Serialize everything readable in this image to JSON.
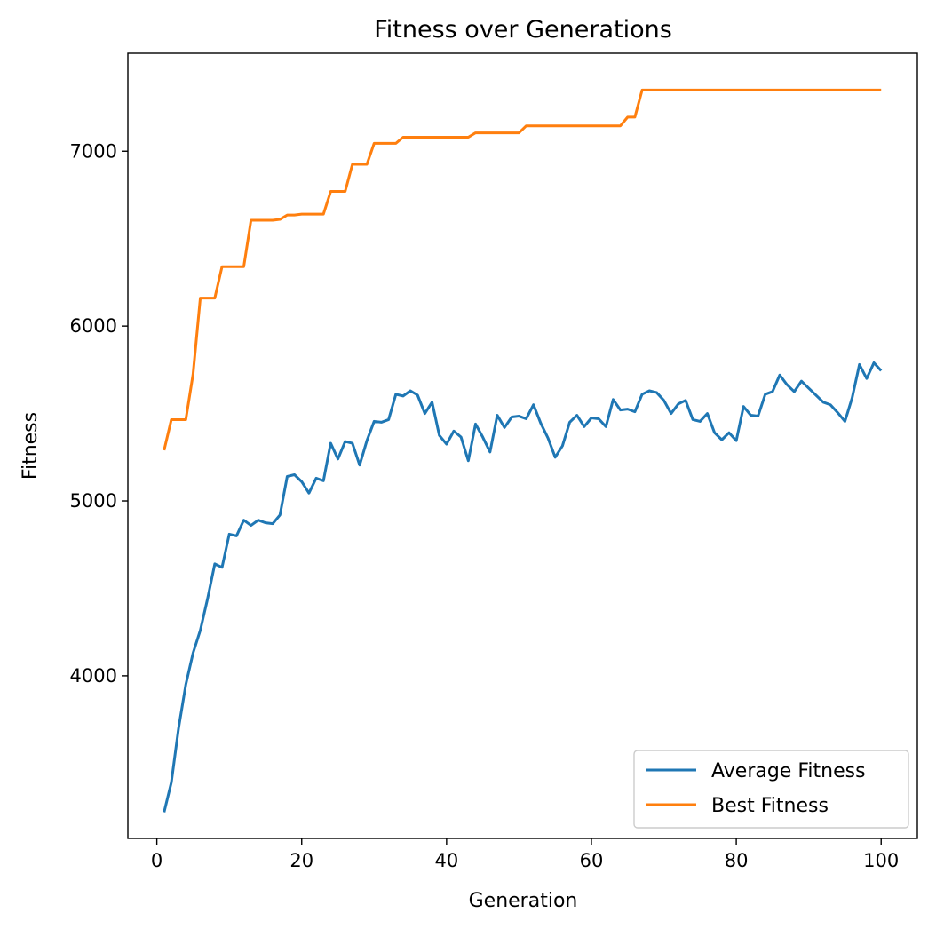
{
  "chart_data": {
    "type": "line",
    "title": "Fitness over Generations",
    "xlabel": "Generation",
    "ylabel": "Fitness",
    "xlim": [
      -4,
      105
    ],
    "ylim": [
      3070,
      7560
    ],
    "xticks": [
      0,
      20,
      40,
      60,
      80,
      100
    ],
    "yticks": [
      4000,
      5000,
      6000,
      7000
    ],
    "grid": false,
    "legend_position": "lower right",
    "x": [
      1,
      2,
      3,
      4,
      5,
      6,
      7,
      8,
      9,
      10,
      11,
      12,
      13,
      14,
      15,
      16,
      17,
      18,
      19,
      20,
      21,
      22,
      23,
      24,
      25,
      26,
      27,
      28,
      29,
      30,
      31,
      32,
      33,
      34,
      35,
      36,
      37,
      38,
      39,
      40,
      41,
      42,
      43,
      44,
      45,
      46,
      47,
      48,
      49,
      50,
      51,
      52,
      53,
      54,
      55,
      56,
      57,
      58,
      59,
      60,
      61,
      62,
      63,
      64,
      65,
      66,
      67,
      68,
      69,
      70,
      71,
      72,
      73,
      74,
      75,
      76,
      77,
      78,
      79,
      80,
      81,
      82,
      83,
      84,
      85,
      86,
      87,
      88,
      89,
      90,
      91,
      92,
      93,
      94,
      95,
      96,
      97,
      98,
      99,
      100
    ],
    "series": [
      {
        "name": "Average Fitness",
        "color": "#1f77b4",
        "values": [
          3220,
          3390,
          3700,
          3950,
          4130,
          4260,
          4440,
          4640,
          4620,
          4810,
          4800,
          4890,
          4860,
          4890,
          4875,
          4870,
          4920,
          5140,
          5150,
          5110,
          5045,
          5130,
          5115,
          5330,
          5240,
          5340,
          5330,
          5205,
          5345,
          5455,
          5450,
          5465,
          5610,
          5600,
          5630,
          5605,
          5500,
          5565,
          5375,
          5325,
          5400,
          5365,
          5230,
          5440,
          5365,
          5280,
          5490,
          5420,
          5480,
          5485,
          5470,
          5550,
          5445,
          5360,
          5250,
          5315,
          5450,
          5490,
          5425,
          5475,
          5470,
          5425,
          5580,
          5520,
          5525,
          5510,
          5610,
          5630,
          5620,
          5575,
          5500,
          5555,
          5575,
          5465,
          5455,
          5500,
          5390,
          5350,
          5390,
          5345,
          5540,
          5490,
          5485,
          5610,
          5625,
          5720,
          5665,
          5625,
          5685,
          5645,
          5605,
          5565,
          5550,
          5505,
          5455,
          5590,
          5780,
          5700,
          5790,
          5745
        ]
      },
      {
        "name": "Best Fitness",
        "color": "#ff7f0e",
        "values": [
          5290,
          5465,
          5465,
          5465,
          5725,
          6160,
          6160,
          6160,
          6340,
          6340,
          6340,
          6340,
          6605,
          6605,
          6605,
          6605,
          6610,
          6635,
          6635,
          6640,
          6640,
          6640,
          6640,
          6770,
          6770,
          6770,
          6925,
          6925,
          6925,
          7045,
          7045,
          7045,
          7045,
          7080,
          7080,
          7080,
          7080,
          7080,
          7080,
          7080,
          7080,
          7080,
          7080,
          7105,
          7105,
          7105,
          7105,
          7105,
          7105,
          7105,
          7145,
          7145,
          7145,
          7145,
          7145,
          7145,
          7145,
          7145,
          7145,
          7145,
          7145,
          7145,
          7145,
          7145,
          7195,
          7195,
          7350,
          7350,
          7350,
          7350,
          7350,
          7350,
          7350,
          7350,
          7350,
          7350,
          7350,
          7350,
          7350,
          7350,
          7350,
          7350,
          7350,
          7350,
          7350,
          7350,
          7350,
          7350,
          7350,
          7350,
          7350,
          7350,
          7350,
          7350,
          7350,
          7350,
          7350,
          7350,
          7350,
          7350
        ]
      }
    ]
  }
}
